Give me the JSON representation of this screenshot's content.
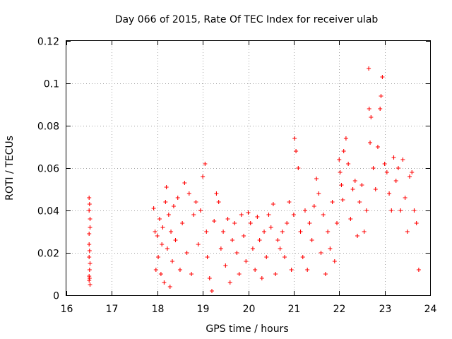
{
  "chart_data": {
    "type": "scatter",
    "title": "Day 066 of 2015, Rate Of TEC Index for receiver ulab",
    "xlabel": "GPS time / hours",
    "ylabel": "ROTI / TECUs",
    "xlim": [
      16,
      24
    ],
    "ylim": [
      0,
      0.12
    ],
    "grid": true,
    "marker": "+",
    "xticks": [
      16,
      17,
      18,
      19,
      20,
      21,
      22,
      23,
      24
    ],
    "xtick_labels": [
      "16",
      "17",
      "18",
      "19",
      "20",
      "21",
      "22",
      "23",
      "24"
    ],
    "yticks": [
      0,
      0.02,
      0.04,
      0.06,
      0.08,
      0.1,
      0.12
    ],
    "ytick_labels": [
      "0",
      "0.02",
      "0.04",
      "0.06",
      "0.08",
      "0.1",
      "0.12"
    ],
    "series": [
      {
        "name": "ROTI",
        "color": "#ff0000",
        "x": [
          16.5,
          16.51,
          16.5,
          16.52,
          16.5,
          16.51,
          16.5,
          16.52,
          16.5,
          16.51,
          16.5,
          16.52,
          16.51,
          16.5,
          16.52,
          17.92,
          17.95,
          17.97,
          18.0,
          18.02,
          18.05,
          18.08,
          18.1,
          18.12,
          18.15,
          18.18,
          18.2,
          18.22,
          18.25,
          18.28,
          18.3,
          18.33,
          18.36,
          18.4,
          18.45,
          18.5,
          18.55,
          18.6,
          18.65,
          18.7,
          18.75,
          18.8,
          18.85,
          18.9,
          18.95,
          19.0,
          19.05,
          19.08,
          19.1,
          19.15,
          19.2,
          19.25,
          19.3,
          19.35,
          19.4,
          19.45,
          19.5,
          19.55,
          19.6,
          19.65,
          19.7,
          19.75,
          19.8,
          19.85,
          19.9,
          19.95,
          20.0,
          20.05,
          20.1,
          20.15,
          20.2,
          20.25,
          20.3,
          20.35,
          20.4,
          20.45,
          20.5,
          20.55,
          20.6,
          20.65,
          20.7,
          20.75,
          20.8,
          20.85,
          20.9,
          20.95,
          21.0,
          21.02,
          21.05,
          21.1,
          21.15,
          21.2,
          21.25,
          21.3,
          21.35,
          21.4,
          21.45,
          21.5,
          21.55,
          21.6,
          21.65,
          21.7,
          21.75,
          21.8,
          21.85,
          21.9,
          21.95,
          22.0,
          22.02,
          22.05,
          22.08,
          22.1,
          22.15,
          22.2,
          22.25,
          22.3,
          22.35,
          22.4,
          22.45,
          22.5,
          22.55,
          22.6,
          22.65,
          22.66,
          22.68,
          22.7,
          22.75,
          22.8,
          22.85,
          22.9,
          22.92,
          22.95,
          23.0,
          23.05,
          23.1,
          23.15,
          23.2,
          23.25,
          23.3,
          23.35,
          23.4,
          23.45,
          23.5,
          23.55,
          23.6,
          23.65,
          23.7,
          23.75
        ],
        "y": [
          0.046,
          0.043,
          0.04,
          0.032,
          0.029,
          0.021,
          0.018,
          0.015,
          0.009,
          0.008,
          0.007,
          0.005,
          0.012,
          0.024,
          0.036,
          0.041,
          0.03,
          0.012,
          0.028,
          0.018,
          0.036,
          0.01,
          0.024,
          0.032,
          0.006,
          0.044,
          0.051,
          0.022,
          0.038,
          0.004,
          0.03,
          0.016,
          0.042,
          0.026,
          0.046,
          0.012,
          0.034,
          0.053,
          0.02,
          0.048,
          0.01,
          0.038,
          0.044,
          0.024,
          0.04,
          0.056,
          0.062,
          0.03,
          0.018,
          0.008,
          0.002,
          0.035,
          0.048,
          0.044,
          0.022,
          0.03,
          0.014,
          0.036,
          0.006,
          0.026,
          0.034,
          0.02,
          0.01,
          0.038,
          0.028,
          0.016,
          0.039,
          0.034,
          0.022,
          0.012,
          0.037,
          0.026,
          0.008,
          0.03,
          0.018,
          0.038,
          0.032,
          0.043,
          0.01,
          0.026,
          0.022,
          0.03,
          0.018,
          0.034,
          0.044,
          0.012,
          0.038,
          0.074,
          0.068,
          0.06,
          0.03,
          0.018,
          0.04,
          0.012,
          0.034,
          0.026,
          0.042,
          0.055,
          0.048,
          0.02,
          0.038,
          0.01,
          0.03,
          0.022,
          0.044,
          0.016,
          0.034,
          0.064,
          0.058,
          0.052,
          0.045,
          0.068,
          0.074,
          0.062,
          0.036,
          0.05,
          0.054,
          0.028,
          0.044,
          0.052,
          0.03,
          0.04,
          0.107,
          0.088,
          0.072,
          0.084,
          0.06,
          0.05,
          0.07,
          0.088,
          0.094,
          0.103,
          0.062,
          0.058,
          0.048,
          0.04,
          0.065,
          0.054,
          0.06,
          0.04,
          0.064,
          0.046,
          0.03,
          0.056,
          0.058,
          0.04,
          0.034,
          0.012
        ]
      }
    ]
  }
}
